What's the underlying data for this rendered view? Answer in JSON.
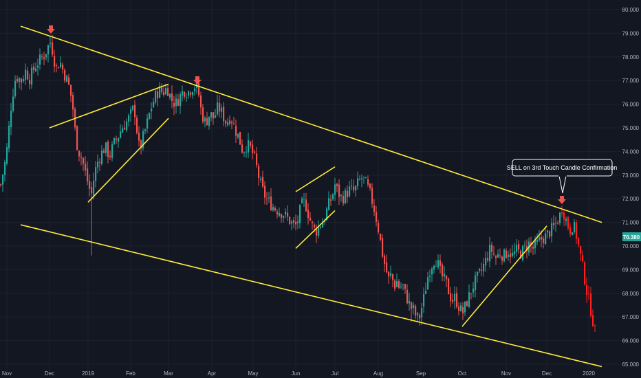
{
  "chart_data": {
    "type": "candlestick",
    "title": "",
    "ylim": [
      65.0,
      80.3
    ],
    "y_ticks": [
      65.0,
      66.0,
      67.0,
      68.0,
      69.0,
      70.0,
      71.0,
      72.0,
      73.0,
      74.0,
      75.0,
      76.0,
      77.0,
      78.0,
      79.0,
      80.0
    ],
    "x_tick_labels": [
      "Nov",
      "Dec",
      "2019",
      "Feb",
      "Mar",
      "Apr",
      "May",
      "Jun",
      "Jul",
      "Aug",
      "Sep",
      "Oct",
      "Nov",
      "Dec",
      "2020"
    ],
    "last_price": "70.380",
    "grid": true,
    "colors": {
      "background": "#131722",
      "up": "#26a69a",
      "down": "#ef5350",
      "highlight_down": "#ff1e1e",
      "trendline": "#ffeb3b",
      "grid": "#1e2230",
      "axis_text": "#b2b5be"
    },
    "annotations": [
      {
        "type": "callout",
        "text": "SELL on 3rd Touch Candle Confirmation"
      },
      {
        "type": "arrow-down",
        "label": "touch-1"
      },
      {
        "type": "arrow-down",
        "label": "touch-2"
      },
      {
        "type": "arrow-down",
        "label": "touch-3"
      }
    ],
    "trendlines": [
      {
        "name": "upper-channel",
        "from": [
          "Oct 2018",
          79.3
        ],
        "to": [
          "Jan 2020",
          71.0
        ]
      },
      {
        "name": "lower-channel",
        "from": [
          "Oct 2018",
          70.9
        ],
        "to": [
          "Jan 2020",
          64.9
        ]
      },
      {
        "name": "rising-wedge-1-top",
        "from": [
          "Dec 2018",
          75.0
        ],
        "to": [
          "Mar 2019",
          76.85
        ]
      },
      {
        "name": "rising-wedge-1-bottom",
        "from": [
          "Jan 2019",
          71.85
        ],
        "to": [
          "Mar 2019",
          75.4
        ]
      },
      {
        "name": "rising-wedge-2-top",
        "from": [
          "Jun 2019",
          72.3
        ],
        "to": [
          "Jul 2019",
          73.35
        ]
      },
      {
        "name": "rising-wedge-2-bottom",
        "from": [
          "Jun 2019",
          69.9
        ],
        "to": [
          "Jul 2019",
          71.5
        ]
      },
      {
        "name": "rising-support",
        "from": [
          "Oct 2019",
          66.6
        ],
        "to": [
          "Dec 2019",
          70.85
        ]
      }
    ],
    "close_path": [
      [
        0,
        72.6
      ],
      [
        8,
        73.8
      ],
      [
        16,
        76.2
      ],
      [
        22,
        77.2
      ],
      [
        30,
        77.0
      ],
      [
        36,
        77.4
      ],
      [
        42,
        77.1
      ],
      [
        50,
        77.6
      ],
      [
        58,
        77.9
      ],
      [
        64,
        78.1
      ],
      [
        68,
        78.4
      ],
      [
        72,
        78.6
      ],
      [
        76,
        78.2
      ],
      [
        80,
        77.5
      ],
      [
        86,
        77.8
      ],
      [
        92,
        77.3
      ],
      [
        98,
        76.9
      ],
      [
        104,
        76.1
      ],
      [
        108,
        74.9
      ],
      [
        112,
        74.1
      ],
      [
        118,
        73.7
      ],
      [
        124,
        73.0
      ],
      [
        128,
        72.5
      ],
      [
        132,
        72.2
      ],
      [
        136,
        73.0
      ],
      [
        140,
        73.5
      ],
      [
        146,
        73.9
      ],
      [
        152,
        74.2
      ],
      [
        158,
        73.8
      ],
      [
        164,
        74.3
      ],
      [
        170,
        74.6
      ],
      [
        176,
        75.0
      ],
      [
        182,
        75.2
      ],
      [
        188,
        75.5
      ],
      [
        194,
        75.9
      ],
      [
        198,
        74.9
      ],
      [
        202,
        74.0
      ],
      [
        206,
        74.5
      ],
      [
        212,
        75.1
      ],
      [
        218,
        75.8
      ],
      [
        224,
        76.3
      ],
      [
        230,
        76.6
      ],
      [
        236,
        76.5
      ],
      [
        242,
        76.7
      ],
      [
        248,
        76.2
      ],
      [
        254,
        76.0
      ],
      [
        260,
        76.3
      ],
      [
        266,
        76.6
      ],
      [
        272,
        76.5
      ],
      [
        278,
        76.7
      ],
      [
        284,
        76.8
      ],
      [
        288,
        76.4
      ],
      [
        292,
        75.6
      ],
      [
        298,
        75.2
      ],
      [
        304,
        75.6
      ],
      [
        310,
        75.4
      ],
      [
        316,
        75.9
      ],
      [
        322,
        75.6
      ],
      [
        328,
        75.2
      ],
      [
        334,
        75.5
      ],
      [
        340,
        75.0
      ],
      [
        346,
        74.6
      ],
      [
        352,
        74.0
      ],
      [
        358,
        74.3
      ],
      [
        364,
        74.1
      ],
      [
        370,
        73.6
      ],
      [
        376,
        72.8
      ],
      [
        380,
        72.4
      ],
      [
        386,
        72.0
      ],
      [
        392,
        71.8
      ],
      [
        398,
        71.6
      ],
      [
        404,
        71.5
      ],
      [
        410,
        71.4
      ],
      [
        416,
        71.2
      ],
      [
        422,
        71.0
      ],
      [
        428,
        70.8
      ],
      [
        432,
        71.1
      ],
      [
        436,
        71.6
      ],
      [
        440,
        71.9
      ],
      [
        444,
        71.7
      ],
      [
        448,
        71.3
      ],
      [
        452,
        70.9
      ],
      [
        458,
        70.6
      ],
      [
        464,
        70.9
      ],
      [
        470,
        71.1
      ],
      [
        476,
        71.7
      ],
      [
        482,
        72.1
      ],
      [
        486,
        72.6
      ],
      [
        490,
        72.3
      ],
      [
        496,
        72.0
      ],
      [
        502,
        72.2
      ],
      [
        508,
        72.4
      ],
      [
        514,
        72.3
      ],
      [
        520,
        72.7
      ],
      [
        526,
        72.9
      ],
      [
        530,
        72.7
      ],
      [
        536,
        72.3
      ],
      [
        542,
        71.7
      ],
      [
        548,
        70.9
      ],
      [
        552,
        70.2
      ],
      [
        556,
        69.5
      ],
      [
        560,
        69.0
      ],
      [
        564,
        68.6
      ],
      [
        568,
        68.8
      ],
      [
        572,
        68.3
      ],
      [
        576,
        68.5
      ],
      [
        580,
        68.2
      ],
      [
        584,
        68.4
      ],
      [
        588,
        68.0
      ],
      [
        592,
        67.7
      ],
      [
        596,
        67.4
      ],
      [
        600,
        67.3
      ],
      [
        604,
        67.0
      ],
      [
        608,
        66.9
      ],
      [
        612,
        67.4
      ],
      [
        616,
        67.9
      ],
      [
        620,
        68.6
      ],
      [
        624,
        69.0
      ],
      [
        628,
        69.3
      ],
      [
        632,
        69.5
      ],
      [
        636,
        69.2
      ],
      [
        640,
        68.8
      ],
      [
        644,
        68.6
      ],
      [
        648,
        68.4
      ],
      [
        652,
        68.0
      ],
      [
        656,
        67.7
      ],
      [
        660,
        67.8
      ],
      [
        664,
        67.6
      ],
      [
        668,
        67.3
      ],
      [
        672,
        67.2
      ],
      [
        676,
        67.5
      ],
      [
        680,
        67.8
      ],
      [
        684,
        68.1
      ],
      [
        688,
        68.4
      ],
      [
        692,
        68.6
      ],
      [
        698,
        68.9
      ],
      [
        704,
        69.3
      ],
      [
        708,
        69.6
      ],
      [
        712,
        69.9
      ],
      [
        716,
        69.7
      ],
      [
        720,
        69.5
      ],
      [
        726,
        69.7
      ],
      [
        732,
        69.6
      ],
      [
        738,
        69.8
      ],
      [
        744,
        69.6
      ],
      [
        750,
        69.8
      ],
      [
        756,
        69.7
      ],
      [
        762,
        69.9
      ],
      [
        768,
        70.1
      ],
      [
        774,
        69.9
      ],
      [
        780,
        70.1
      ],
      [
        786,
        70.3
      ],
      [
        792,
        70.4
      ],
      [
        798,
        70.6
      ],
      [
        804,
        70.8
      ],
      [
        808,
        71.0
      ],
      [
        812,
        71.2
      ],
      [
        816,
        71.6
      ],
      [
        820,
        71.3
      ],
      [
        824,
        70.9
      ],
      [
        828,
        70.7
      ],
      [
        832,
        70.9
      ],
      [
        836,
        70.6
      ],
      [
        840,
        70.0
      ],
      [
        844,
        69.4
      ],
      [
        848,
        68.8
      ],
      [
        852,
        68.1
      ],
      [
        856,
        67.6
      ],
      [
        860,
        67.0
      ],
      [
        864,
        66.4
      ],
      [
        866,
        65.8
      ]
    ],
    "wick_spikes": [
      {
        "x": 132,
        "low": 69.6
      },
      {
        "x": 72,
        "high": 78.9
      },
      {
        "x": 598,
        "low": 66.8
      }
    ]
  }
}
